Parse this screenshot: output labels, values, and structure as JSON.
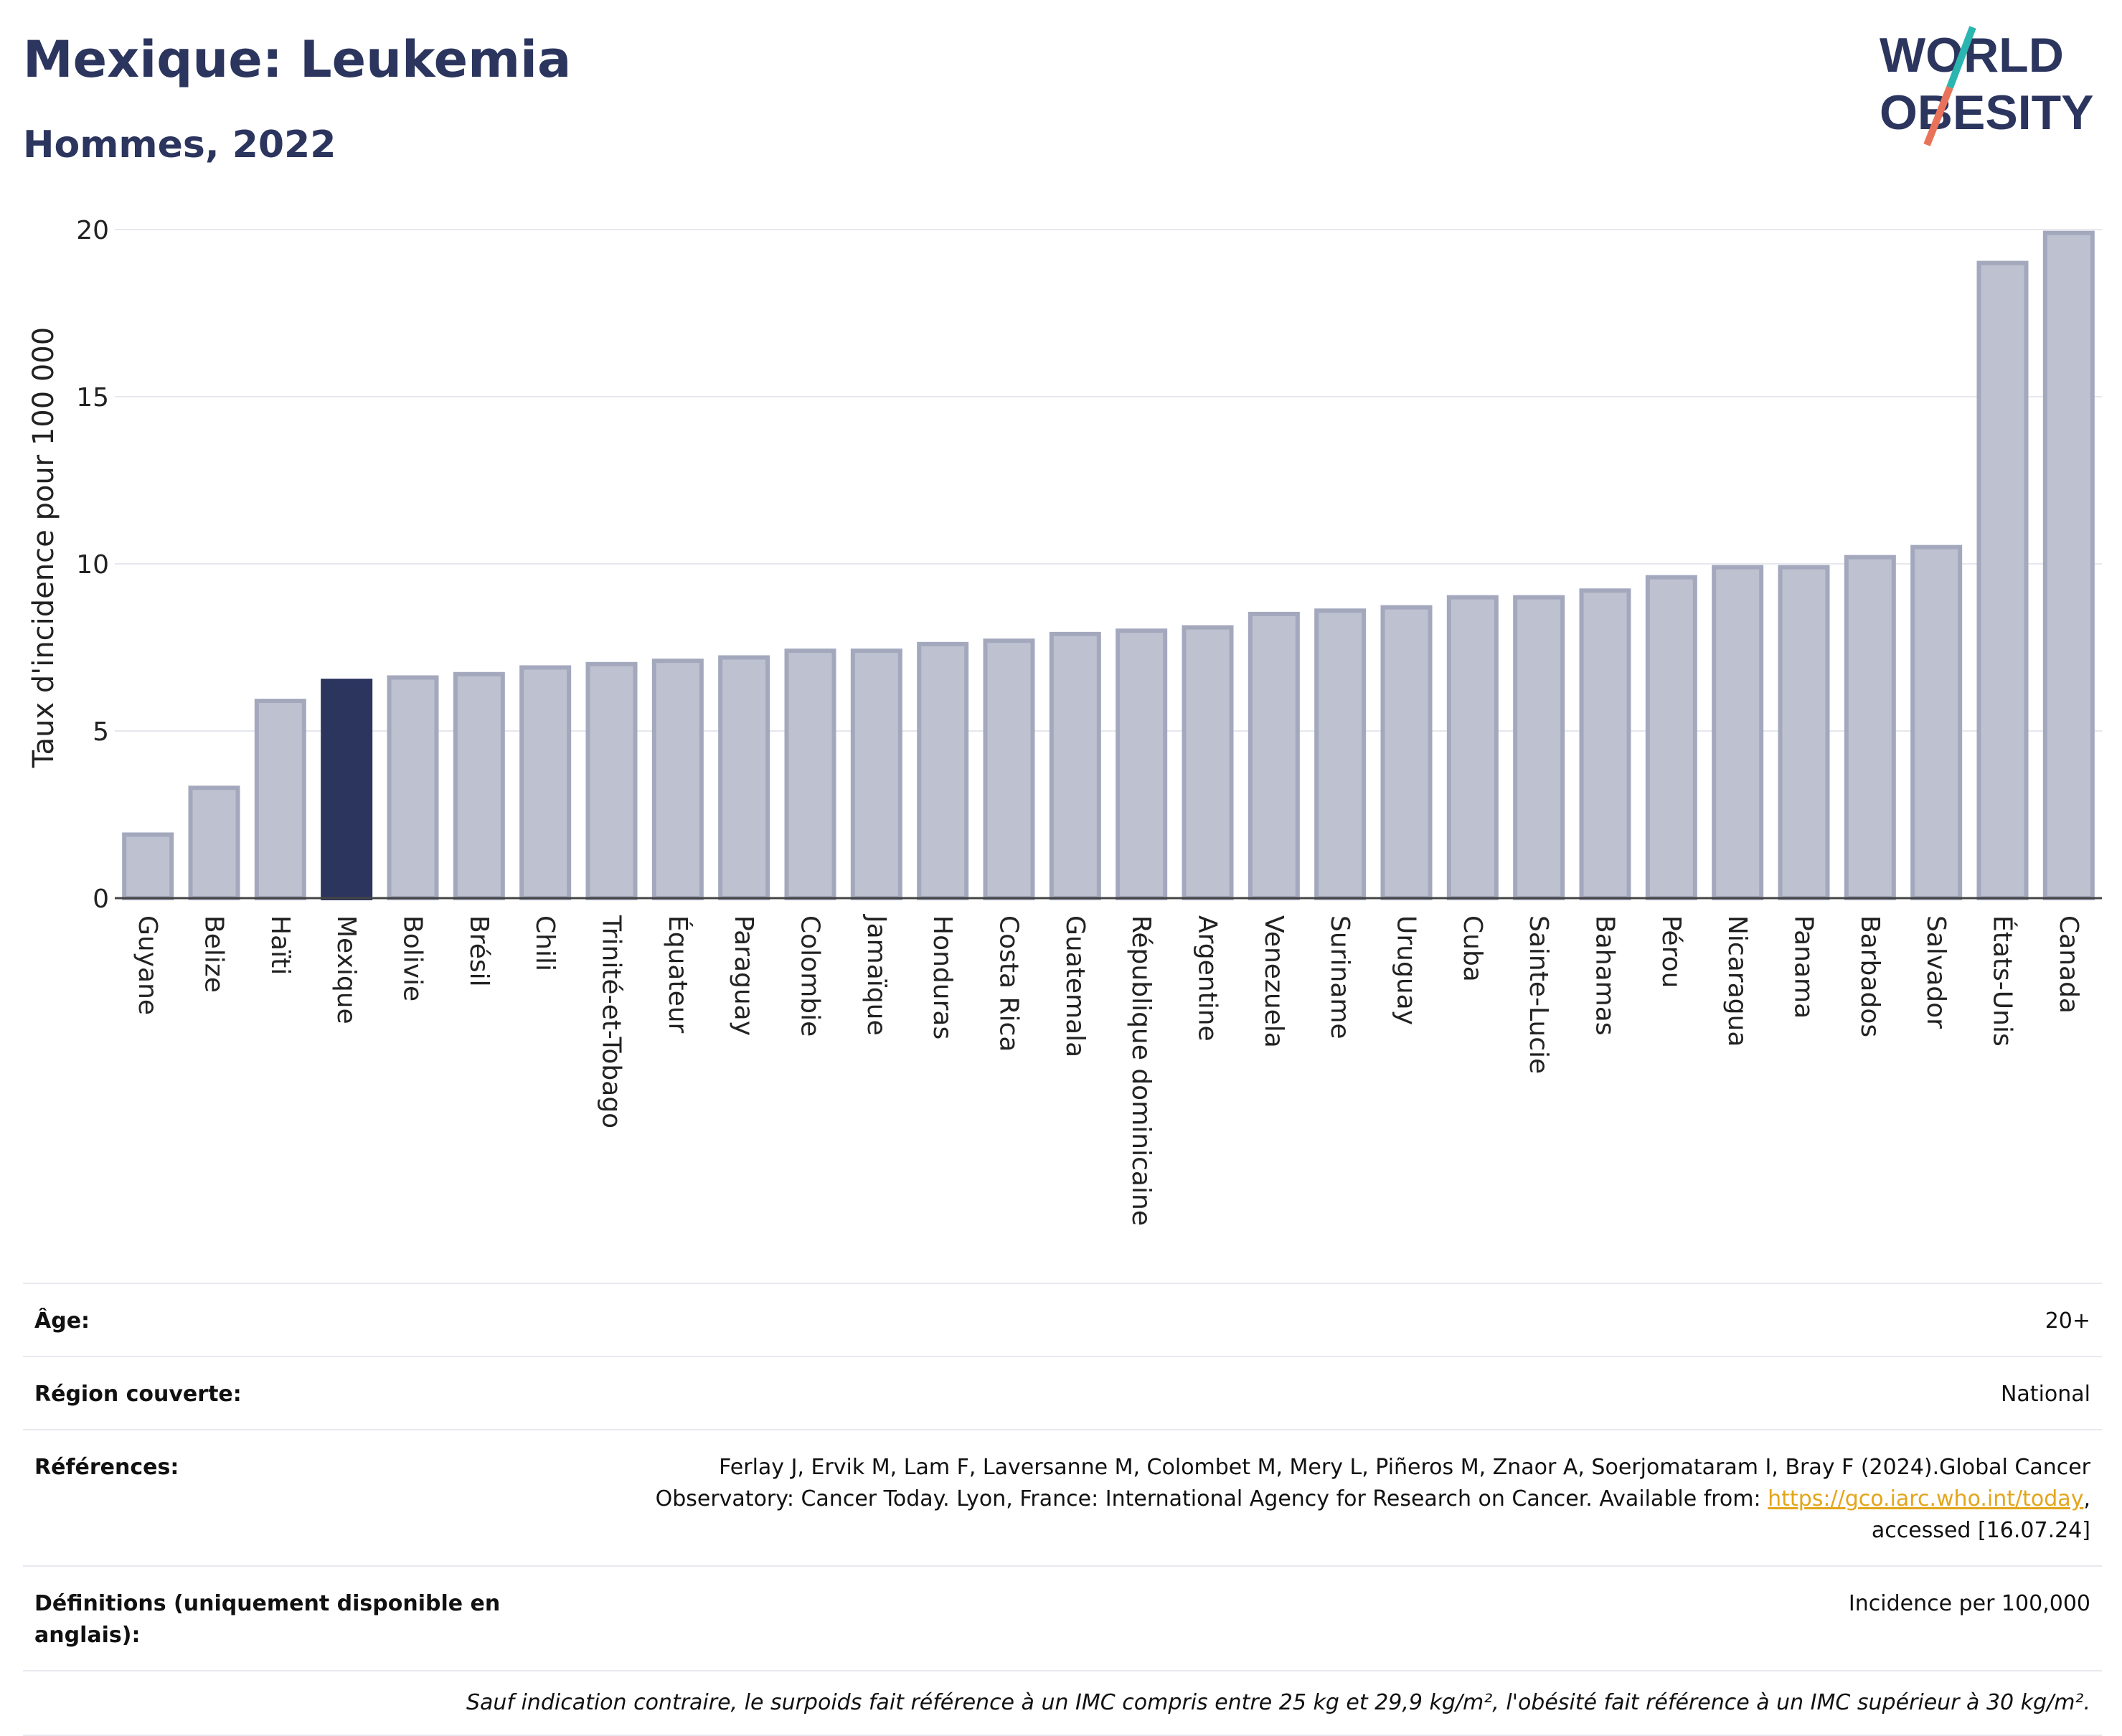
{
  "header": {
    "title": "Mexique: Leukemia",
    "subtitle": "Hommes, 2022"
  },
  "logo": {
    "line1": "WORLD",
    "line2": "OBESITY",
    "name": "world-obesity-logo"
  },
  "colors": {
    "highlight": "#2b355e",
    "bar": "#bec1cf",
    "bar_stroke": "#a3a8bd",
    "grid": "#e6e7ee",
    "title": "#2b355e"
  },
  "chart_data": {
    "type": "bar",
    "ylabel": "Taux d'incidence pour 100 000",
    "ylim": [
      0,
      20
    ],
    "yticks": [
      0,
      5,
      10,
      15,
      20
    ],
    "grid": true,
    "highlight": "Mexique",
    "categories": [
      "Guyane",
      "Belize",
      "Haïti",
      "Mexique",
      "Bolivie",
      "Brésil",
      "Chili",
      "Trinité-et-Tobago",
      "Équateur",
      "Paraguay",
      "Colombie",
      "Jamaïque",
      "Honduras",
      "Costa Rica",
      "Guatemala",
      "République dominicaine",
      "Argentine",
      "Venezuela",
      "Suriname",
      "Uruguay",
      "Cuba",
      "Sainte-Lucie",
      "Bahamas",
      "Pérou",
      "Nicaragua",
      "Panama",
      "Barbados",
      "Salvador",
      "États-Unis",
      "Canada"
    ],
    "values": [
      1.9,
      3.3,
      5.9,
      6.5,
      6.6,
      6.7,
      6.9,
      7.0,
      7.1,
      7.2,
      7.4,
      7.4,
      7.6,
      7.7,
      7.9,
      8.0,
      8.1,
      8.5,
      8.6,
      8.7,
      9.0,
      9.0,
      9.2,
      9.6,
      9.9,
      9.9,
      10.2,
      10.5,
      19.0,
      19.9
    ]
  },
  "info": {
    "age_label": "Âge:",
    "age_value": "20+",
    "region_label": "Région couverte:",
    "region_value": "National",
    "references_label": "Références:",
    "references_text": "Ferlay J, Ervik M, Lam F, Laversanne M, Colombet M, Mery L, Piñeros M, Znaor A, Soerjomataram I, Bray F (2024).Global Cancer Observatory: Cancer Today. Lyon, France: International Agency for Research on Cancer. Available from:",
    "references_link": "https://gco.iarc.who.int/today",
    "references_suffix": ", accessed [16.07.24]",
    "definitions_label": "Définitions (uniquement disponible en anglais):",
    "definitions_value": "Incidence per 100,000",
    "note": "Sauf indication contraire, le surpoids fait référence à un IMC compris entre 25 kg et 29,9 kg/m², l'obésité fait référence à un IMC supérieur à 30 kg/m²."
  }
}
